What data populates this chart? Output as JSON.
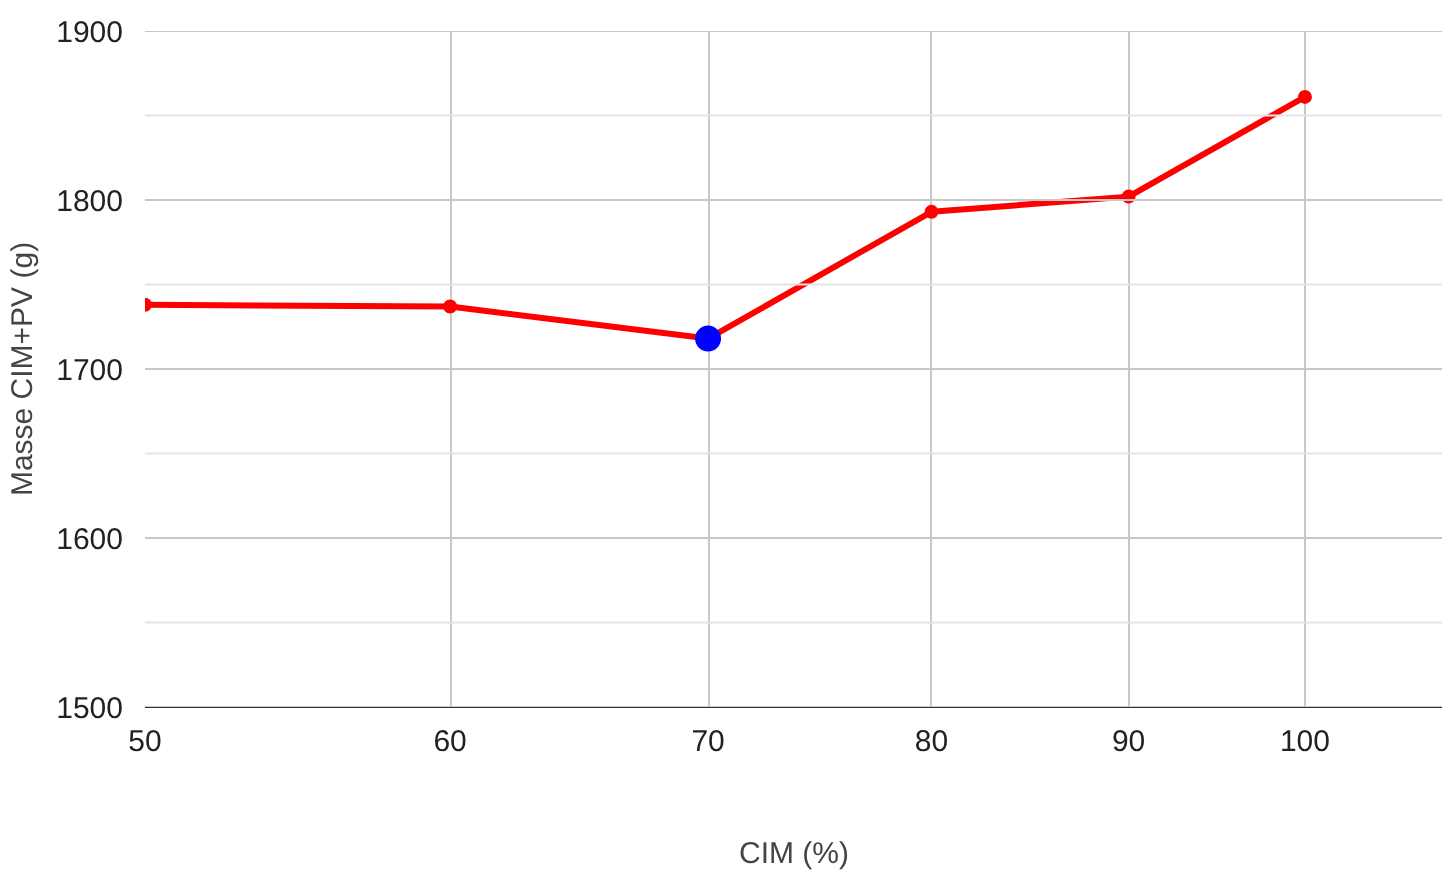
{
  "chart_data": {
    "type": "line",
    "xlabel": "CIM (%)",
    "ylabel": "Masse CIM+PV (g)",
    "x": [
      50,
      60,
      70,
      80,
      90,
      100
    ],
    "series": [
      {
        "color": "#ff0000",
        "values": [
          1738,
          1737,
          1718,
          1793,
          1802,
          1861
        ]
      },
      {
        "type": "scatter",
        "color": "#0000ff",
        "x": [
          70
        ],
        "values": [
          1718
        ]
      }
    ],
    "log": "x",
    "xlim": [
      50,
      108.6
    ],
    "xticks": [
      50,
      60,
      70,
      80,
      90,
      100
    ],
    "ylim": [
      1500,
      1900
    ],
    "yticks": [
      1500,
      {
        "value": 1550,
        "label": null
      },
      1600,
      {
        "value": 1650,
        "label": null
      },
      1700,
      {
        "value": 1750,
        "label": null
      },
      1800,
      {
        "value": 1850,
        "label": null
      },
      1900
    ],
    "grid": true,
    "marker": "circle"
  }
}
